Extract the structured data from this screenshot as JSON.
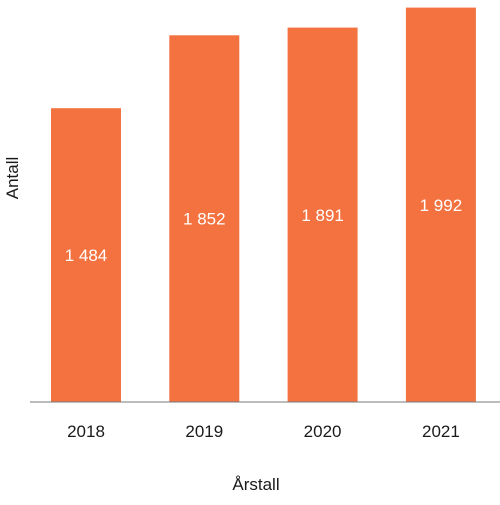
{
  "chart_data": {
    "type": "bar",
    "categories": [
      "2018",
      "2019",
      "2020",
      "2021"
    ],
    "values": [
      1484,
      1852,
      1891,
      1992
    ],
    "value_labels": [
      "1 484",
      "1 852",
      "1 891",
      "1 992"
    ],
    "xlabel": "Årstall",
    "ylabel": "Antall",
    "ylim": [
      0,
      2000
    ],
    "grid": false,
    "bar_color": "#f37240",
    "axis_color": "#7a7a7a"
  }
}
